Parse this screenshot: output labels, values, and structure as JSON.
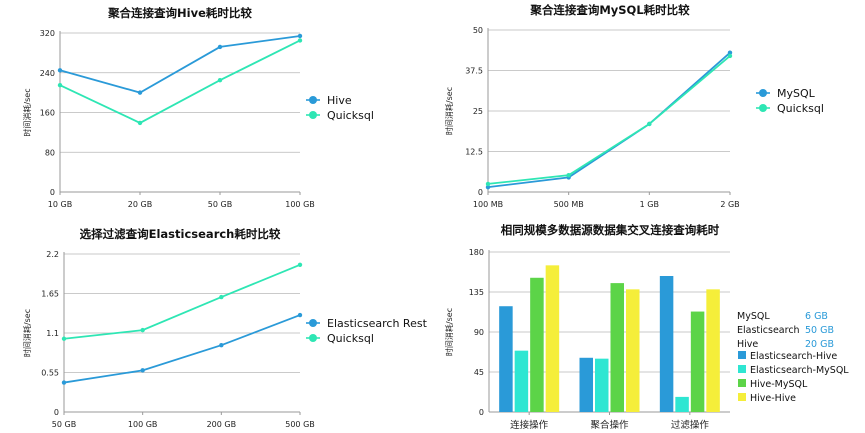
{
  "colors": {
    "hive": "#2a9ad8",
    "quicksql": "#2ee6b4",
    "grid": "#b8b8b8",
    "axis": "#9a9a9a",
    "mysql_info": "#2a9ad8",
    "bar_es_hive": "#2a9ad8",
    "bar_es_mysql": "#2ee6d2",
    "bar_hive_mysql": "#5cd448",
    "bar_hive_hive": "#f5ee3a"
  },
  "chart_data": [
    {
      "id": "c1",
      "type": "line",
      "title": "聚合连接查询Hive耗时比较",
      "xlabel": "",
      "ylabel": "时间消耗/sec",
      "categories": [
        "10 GB",
        "20 GB",
        "50 GB",
        "100 GB"
      ],
      "ylim": [
        0,
        320
      ],
      "yticks": [
        "0",
        "80",
        "160",
        "240",
        "320"
      ],
      "grid": true,
      "legend": "right",
      "series": [
        {
          "name": "Hive",
          "color": "#2a9ad8",
          "values": [
            245,
            200,
            292,
            314
          ]
        },
        {
          "name": "Quicksql",
          "color": "#2ee6b4",
          "values": [
            215,
            139,
            225,
            305
          ]
        }
      ]
    },
    {
      "id": "c2",
      "type": "line",
      "title": "聚合连接查询MySQL耗时比较",
      "xlabel": "",
      "ylabel": "时间消耗/sec",
      "categories": [
        "100 MB",
        "500 MB",
        "1 GB",
        "2 GB"
      ],
      "ylim": [
        0,
        50
      ],
      "yticks": [
        "0",
        "12.5",
        "25",
        "37.5",
        "50"
      ],
      "grid": true,
      "legend": "right",
      "series": [
        {
          "name": "MySQL",
          "color": "#2a9ad8",
          "values": [
            1.5,
            4.5,
            21,
            43
          ]
        },
        {
          "name": "Quicksql",
          "color": "#2ee6b4",
          "values": [
            2.5,
            5.2,
            21,
            42
          ]
        }
      ]
    },
    {
      "id": "c3",
      "type": "line",
      "title": "选择过滤查询Elasticsearch耗时比较",
      "xlabel": "",
      "ylabel": "时间消耗/sec",
      "categories": [
        "50 GB",
        "100 GB",
        "200 GB",
        "500 GB"
      ],
      "ylim": [
        0,
        2.2
      ],
      "yticks": [
        "0",
        "0.55",
        "1.1",
        "1.65",
        "2.2"
      ],
      "grid": true,
      "legend": "right",
      "series": [
        {
          "name": "Elasticsearch Rest",
          "color": "#2a9ad8",
          "values": [
            0.41,
            0.58,
            0.93,
            1.35
          ]
        },
        {
          "name": "Quicksql",
          "color": "#2ee6b4",
          "values": [
            1.02,
            1.14,
            1.6,
            2.05
          ]
        }
      ]
    },
    {
      "id": "c4",
      "type": "bar",
      "title": "相同规模多数据源数据集交叉连接查询耗时",
      "xlabel": "",
      "ylabel": "时间消耗/sec",
      "categories": [
        "连接操作",
        "聚合操作",
        "过滤操作"
      ],
      "ylim": [
        0,
        180
      ],
      "yticks": [
        "0",
        "45",
        "90",
        "135",
        "180"
      ],
      "grid": true,
      "legend": "right",
      "series": [
        {
          "name": "Elasticsearch-Hive",
          "color": "#2a9ad8",
          "values": [
            119,
            61,
            153
          ]
        },
        {
          "name": "Elasticsearch-MySQL",
          "color": "#2ee6d2",
          "values": [
            69,
            60,
            17
          ]
        },
        {
          "name": "Hive-MySQL",
          "color": "#5cd448",
          "values": [
            151,
            145,
            113
          ]
        },
        {
          "name": "Hive-Hive",
          "color": "#f5ee3a",
          "values": [
            165,
            138,
            138
          ]
        }
      ],
      "info": [
        {
          "label": "MySQL",
          "value": "6 GB"
        },
        {
          "label": "Elasticsearch",
          "value": "50 GB"
        },
        {
          "label": "Hive",
          "value": "20 GB"
        }
      ]
    }
  ]
}
